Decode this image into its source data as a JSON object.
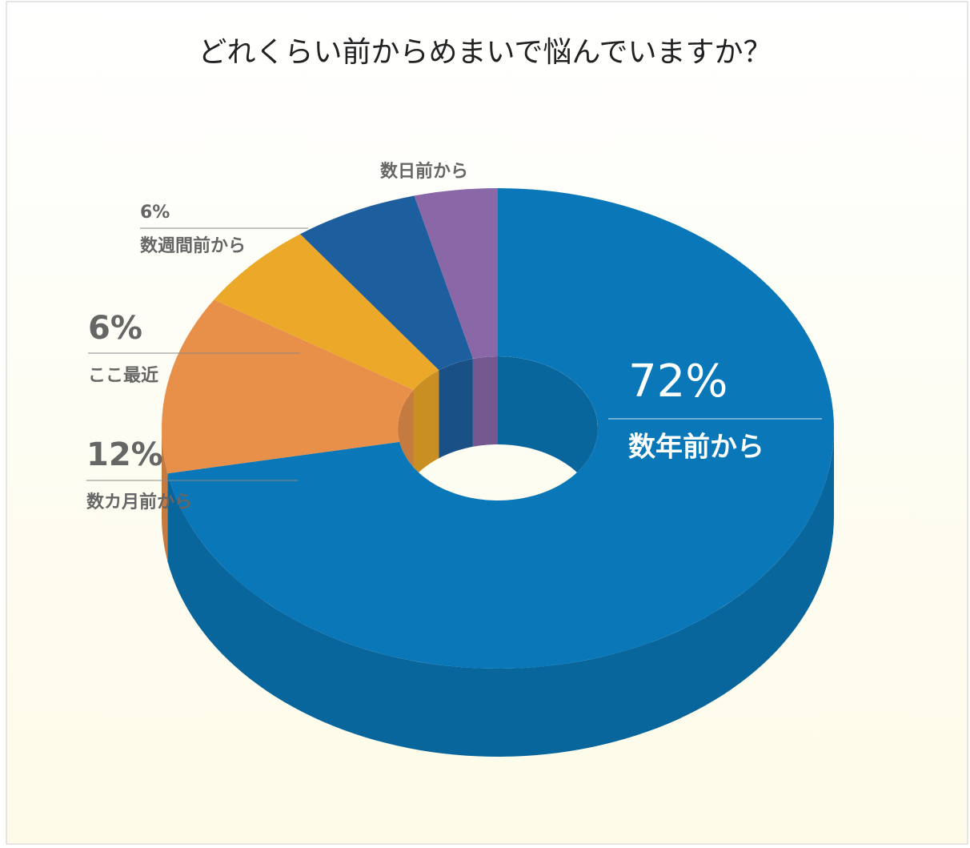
{
  "chart_data": {
    "type": "donut3d",
    "title": "どれくらい前からめまいで悩んでいますか？",
    "categories": [
      "数年前から",
      "数カ月前から",
      "ここ最近",
      "数週間前から",
      "数日前から"
    ],
    "values": [
      72,
      12,
      6,
      6,
      4
    ],
    "value_labels": [
      "72%",
      "12%",
      "6%",
      "6%",
      null
    ],
    "colors": [
      "#0a78b8",
      "#e8904a",
      "#eca828",
      "#1d5e9e",
      "#8a68a8"
    ]
  }
}
